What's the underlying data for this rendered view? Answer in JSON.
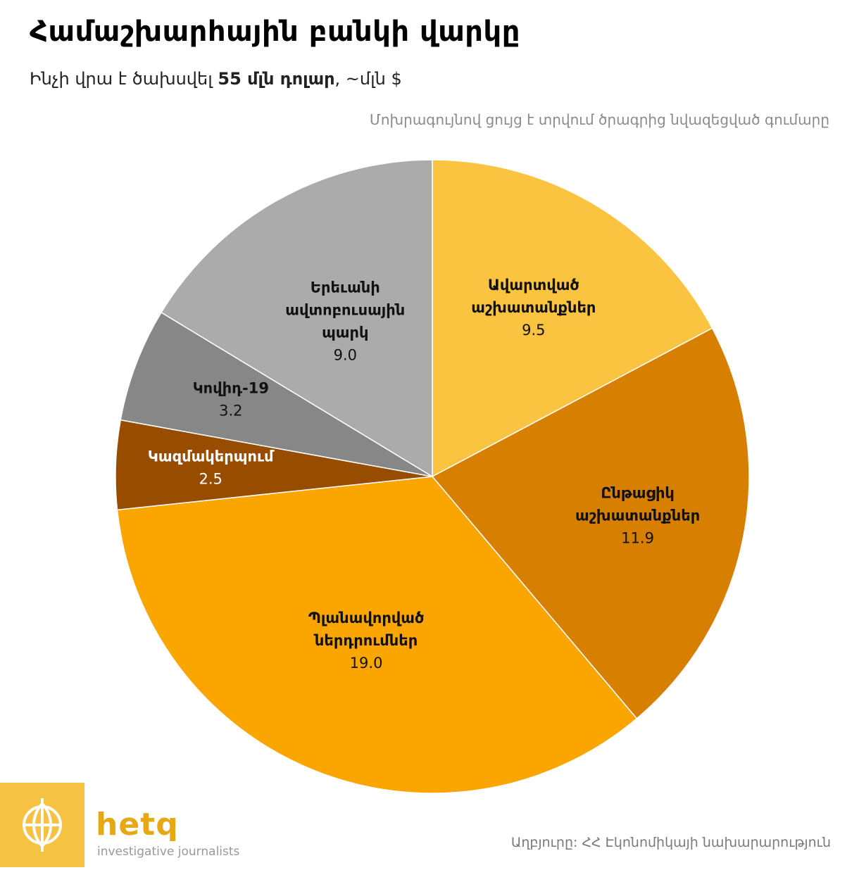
{
  "header": {
    "title": "Համաշխարհային բանկի վարկը",
    "subtitle_prefix": "Ինչի վրա է ծախսվել ",
    "subtitle_bold": "55 մլն դոլար",
    "subtitle_suffix": ", ~մլն $",
    "note": "Մոխրագույնով ցույց է տրվում ծրագրից նվազեցված գումարը"
  },
  "footer": {
    "source": "Աղբյուրը: ՀՀ Էկոնոմիկայի նախարարություն",
    "logo_name": "hetq",
    "logo_tagline": "investigative journalists",
    "logo_icon": "globe-emblem-icon",
    "logo_color": "#f6c244"
  },
  "chart_data": {
    "type": "pie",
    "unit": "մլն $",
    "slices": [
      {
        "label": [
          "Ավարտված",
          "աշխատանքներ"
        ],
        "value": 9.5,
        "display": "9.5",
        "color": "#fbc440",
        "label_color": "#111111"
      },
      {
        "label": [
          "Ընթացիկ",
          "աշխատանքներ"
        ],
        "value": 11.9,
        "display": "11.9",
        "color": "#d77f00",
        "label_color": "#111111"
      },
      {
        "label": [
          "Պլանավորված",
          "ներդրումներ"
        ],
        "value": 19.0,
        "display": "19.0",
        "color": "#fba500",
        "label_color": "#111111"
      },
      {
        "label": [
          "Կազմակերպում"
        ],
        "value": 2.5,
        "display": "2.5",
        "color": "#974c00",
        "label_color": "#ffffff"
      },
      {
        "label": [
          "Կովիդ-19"
        ],
        "value": 3.2,
        "display": "3.2",
        "color": "#878787",
        "label_color": "#111111"
      },
      {
        "label": [
          "Երեւանի",
          "ավտոբուսային",
          "պարկ"
        ],
        "value": 9.0,
        "display": "9.0",
        "color": "#ababab",
        "label_color": "#111111"
      }
    ]
  }
}
